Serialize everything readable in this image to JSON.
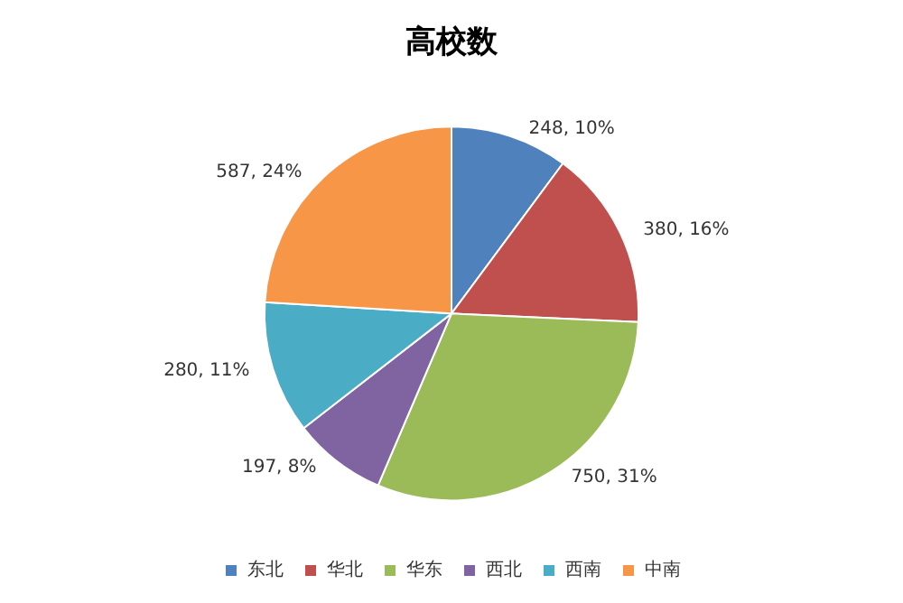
{
  "chart_data": {
    "type": "pie",
    "title": "高校数",
    "categories": [
      "东北",
      "华北",
      "华东",
      "西北",
      "西南",
      "中南"
    ],
    "values": [
      248,
      380,
      750,
      197,
      280,
      587
    ],
    "colors": [
      "#4f81bd",
      "#c0504d",
      "#9bbb59",
      "#8064a2",
      "#4bacc6",
      "#f79646"
    ],
    "value_labels": [
      "248, 10%",
      "380, 16%",
      "750, 31%",
      "197, 8%",
      "280, 11%",
      "587, 24%"
    ],
    "legend": "bottom"
  }
}
